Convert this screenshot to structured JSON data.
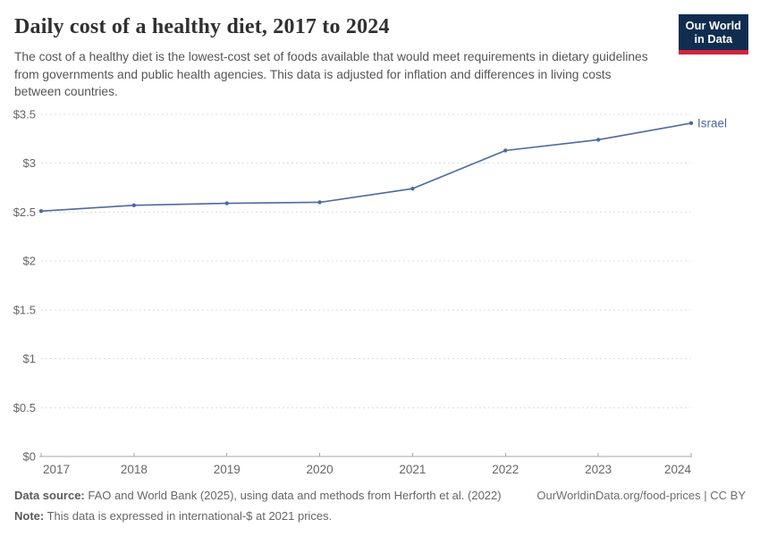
{
  "header": {
    "title": "Daily cost of a healthy diet, 2017 to 2024",
    "subtitle": "The cost of a healthy diet is the lowest-cost set of foods available that would meet requirements in dietary guidelines from governments and public health agencies. This data is adjusted for inflation and differences in living costs between countries.",
    "logo": {
      "line1": "Our World",
      "line2": "in Data"
    }
  },
  "chart_data": {
    "type": "line",
    "title": "Daily cost of a healthy diet, 2017 to 2024",
    "x": [
      "2017",
      "2018",
      "2019",
      "2020",
      "2021",
      "2022",
      "2023",
      "2024"
    ],
    "series": [
      {
        "name": "Israel",
        "color": "#4C6A9C",
        "values": [
          2.51,
          2.57,
          2.59,
          2.6,
          2.74,
          3.13,
          3.24,
          3.41
        ]
      }
    ],
    "xlabel": "",
    "ylabel": "",
    "ylim": [
      0,
      3.5
    ],
    "yticks": [
      0,
      0.5,
      1,
      1.5,
      2,
      2.5,
      3,
      3.5
    ],
    "ytick_labels": [
      "$0",
      "$0.5",
      "$1",
      "$1.5",
      "$2",
      "$2.5",
      "$3",
      "$3.5"
    ],
    "grid": "horizontal-dashed",
    "legend_position": "end-of-line-label"
  },
  "footer": {
    "source_label": "Data source:",
    "source_text": " FAO and World Bank (2025), using data and methods from Herforth et al. (2022)",
    "note_label": "Note:",
    "note_text": " This data is expressed in international-$ at 2021 prices.",
    "citation": "OurWorldinData.org/food-prices | CC BY"
  },
  "colors": {
    "accent_line": "#4C6A9C",
    "grid": "#dcdcdc",
    "axis": "#a6a6a6",
    "tick_text": "#666666",
    "logo_bg": "#102d50",
    "logo_bar": "#cf2540"
  }
}
